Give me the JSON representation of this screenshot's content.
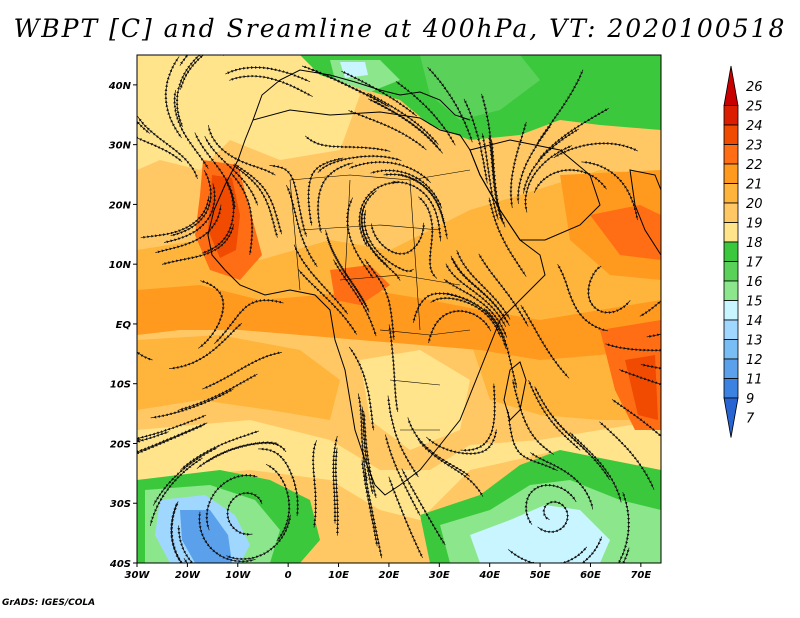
{
  "title": "WBPT [C] and Sreamline at 400hPa, VT: 2020100518",
  "credit": "GrADS: IGES/COLA",
  "map": {
    "lat_ticks": [
      "40N",
      "30N",
      "20N",
      "10N",
      "EQ",
      "10S",
      "20S",
      "30S",
      "40S"
    ],
    "lon_ticks": [
      "30W",
      "20W",
      "10W",
      "0",
      "10E",
      "20E",
      "30E",
      "40E",
      "50E",
      "60E",
      "70E"
    ]
  },
  "colorbar": {
    "labels": [
      "26",
      "25",
      "24",
      "23",
      "22",
      "21",
      "20",
      "19",
      "18",
      "17",
      "16",
      "15",
      "14",
      "13",
      "12",
      "11",
      "9",
      "7"
    ],
    "colors": [
      "#c80000",
      "#dc1e00",
      "#f04b00",
      "#ff6e14",
      "#ff9a1e",
      "#ffb43c",
      "#ffc864",
      "#ffe48c",
      "#3cc83c",
      "#5ad25a",
      "#8ce68c",
      "#c8f5ff",
      "#a0d7ff",
      "#78bef5",
      "#5aa0eb",
      "#3c82e1",
      "#2864d2"
    ]
  },
  "chart_data": {
    "type": "heatmap",
    "title": "WBPT [C] and Sreamline at 400hPa, VT: 2020100518",
    "x_ticks": [
      "30W",
      "20W",
      "10W",
      "0",
      "10E",
      "20E",
      "30E",
      "40E",
      "50E",
      "60E",
      "70E"
    ],
    "y_ticks": [
      "40N",
      "30N",
      "20N",
      "10N",
      "EQ",
      "10S",
      "20S",
      "30S",
      "40S"
    ],
    "xlim": [
      -30,
      74
    ],
    "ylim": [
      -40,
      45
    ],
    "colorbar_levels": [
      7,
      9,
      11,
      12,
      13,
      14,
      15,
      16,
      17,
      18,
      19,
      20,
      21,
      22,
      23,
      24,
      25,
      26
    ]
  }
}
